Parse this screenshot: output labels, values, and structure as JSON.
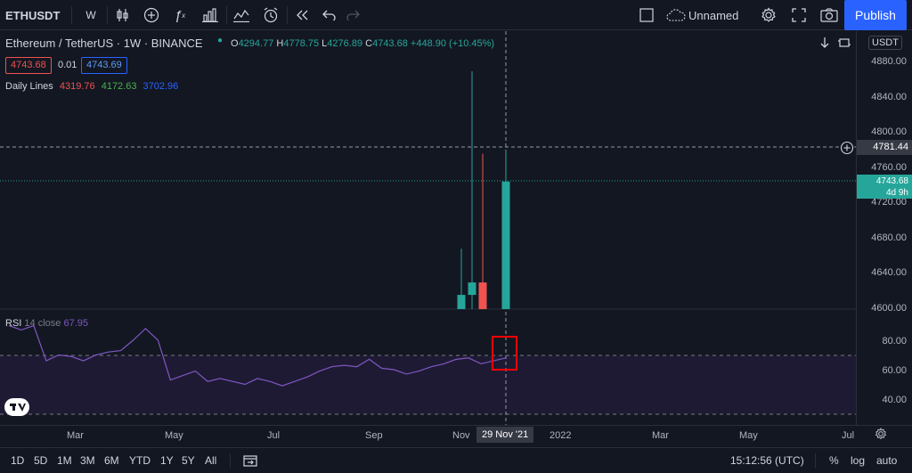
{
  "toolbar": {
    "symbol": "ETHUSDT",
    "interval": "W",
    "layout_name": "Unnamed",
    "publish_label": "Publish"
  },
  "legend": {
    "title": "Ethereum / TetherUS · 1W · BINANCE",
    "open_label": "O",
    "open": "4294.77",
    "high_label": "H",
    "high": "4778.75",
    "low_label": "L",
    "low": "4276.89",
    "close_label": "C",
    "close": "4743.68",
    "change": "+448.90 (+10.45%)",
    "sell_price": "4743.68",
    "spread": "0.01",
    "buy_price": "4743.69",
    "daily_lines_label": "Daily Lines",
    "daily_1": "4319.76",
    "daily_2": "4172.63",
    "daily_3": "3702.96"
  },
  "rsi": {
    "label": "RSI",
    "params": "14 close",
    "value": "67.95",
    "upper_band": 70,
    "lower_band": 30,
    "values": [
      90,
      87,
      90,
      66,
      70,
      69,
      66,
      70,
      72,
      73,
      80,
      88,
      80,
      53,
      56,
      59,
      52,
      54,
      52,
      50,
      54,
      52,
      49,
      52,
      55,
      59,
      62,
      63,
      62,
      67,
      61,
      60,
      57,
      59,
      62,
      64,
      67,
      68,
      64,
      66,
      68
    ]
  },
  "price_axis": {
    "currency": "USDT",
    "ticks": [
      "4880.00",
      "4840.00",
      "4800.00",
      "4760.00",
      "4720.00",
      "4680.00",
      "4640.00",
      "4600.00"
    ],
    "crosshair_price": "4781.44",
    "last_price": "4743.68",
    "countdown": "4d 9h",
    "rsi_ticks": [
      "80.00",
      "60.00",
      "40.00"
    ]
  },
  "time_axis": {
    "labels": [
      "Mar",
      "May",
      "Jul",
      "Sep",
      "Nov",
      "29 Nov '21",
      "2022",
      "Mar",
      "May",
      "Jul"
    ]
  },
  "chart_data": {
    "type": "candlestick",
    "ylim": [
      4600,
      4890
    ],
    "candles": [
      {
        "open": 4600,
        "high": 4668,
        "low": 4600,
        "close": 4616,
        "color": "#26a69a"
      },
      {
        "open": 4616,
        "high": 4868,
        "low": 4600,
        "close": 4630,
        "color": "#26a69a"
      },
      {
        "open": 4630,
        "high": 4775,
        "low": 4600,
        "close": 4600,
        "color": "#ef5350"
      },
      {
        "open": 4600,
        "high": 4778.75,
        "low": 4600,
        "close": 4743.68,
        "color": "#26a69a"
      }
    ]
  },
  "bottom_bar": {
    "ranges": [
      "1D",
      "5D",
      "1M",
      "3M",
      "6M",
      "YTD",
      "1Y",
      "5Y",
      "All"
    ],
    "clock": "15:12:56 (UTC)",
    "percent_label": "%",
    "log_label": "log",
    "auto_label": "auto"
  },
  "colors": {
    "up": "#26a69a",
    "down": "#ef5350",
    "rsi_line": "#7e57c2",
    "highlight_box": "#ff0000",
    "accent": "#2962ff"
  }
}
